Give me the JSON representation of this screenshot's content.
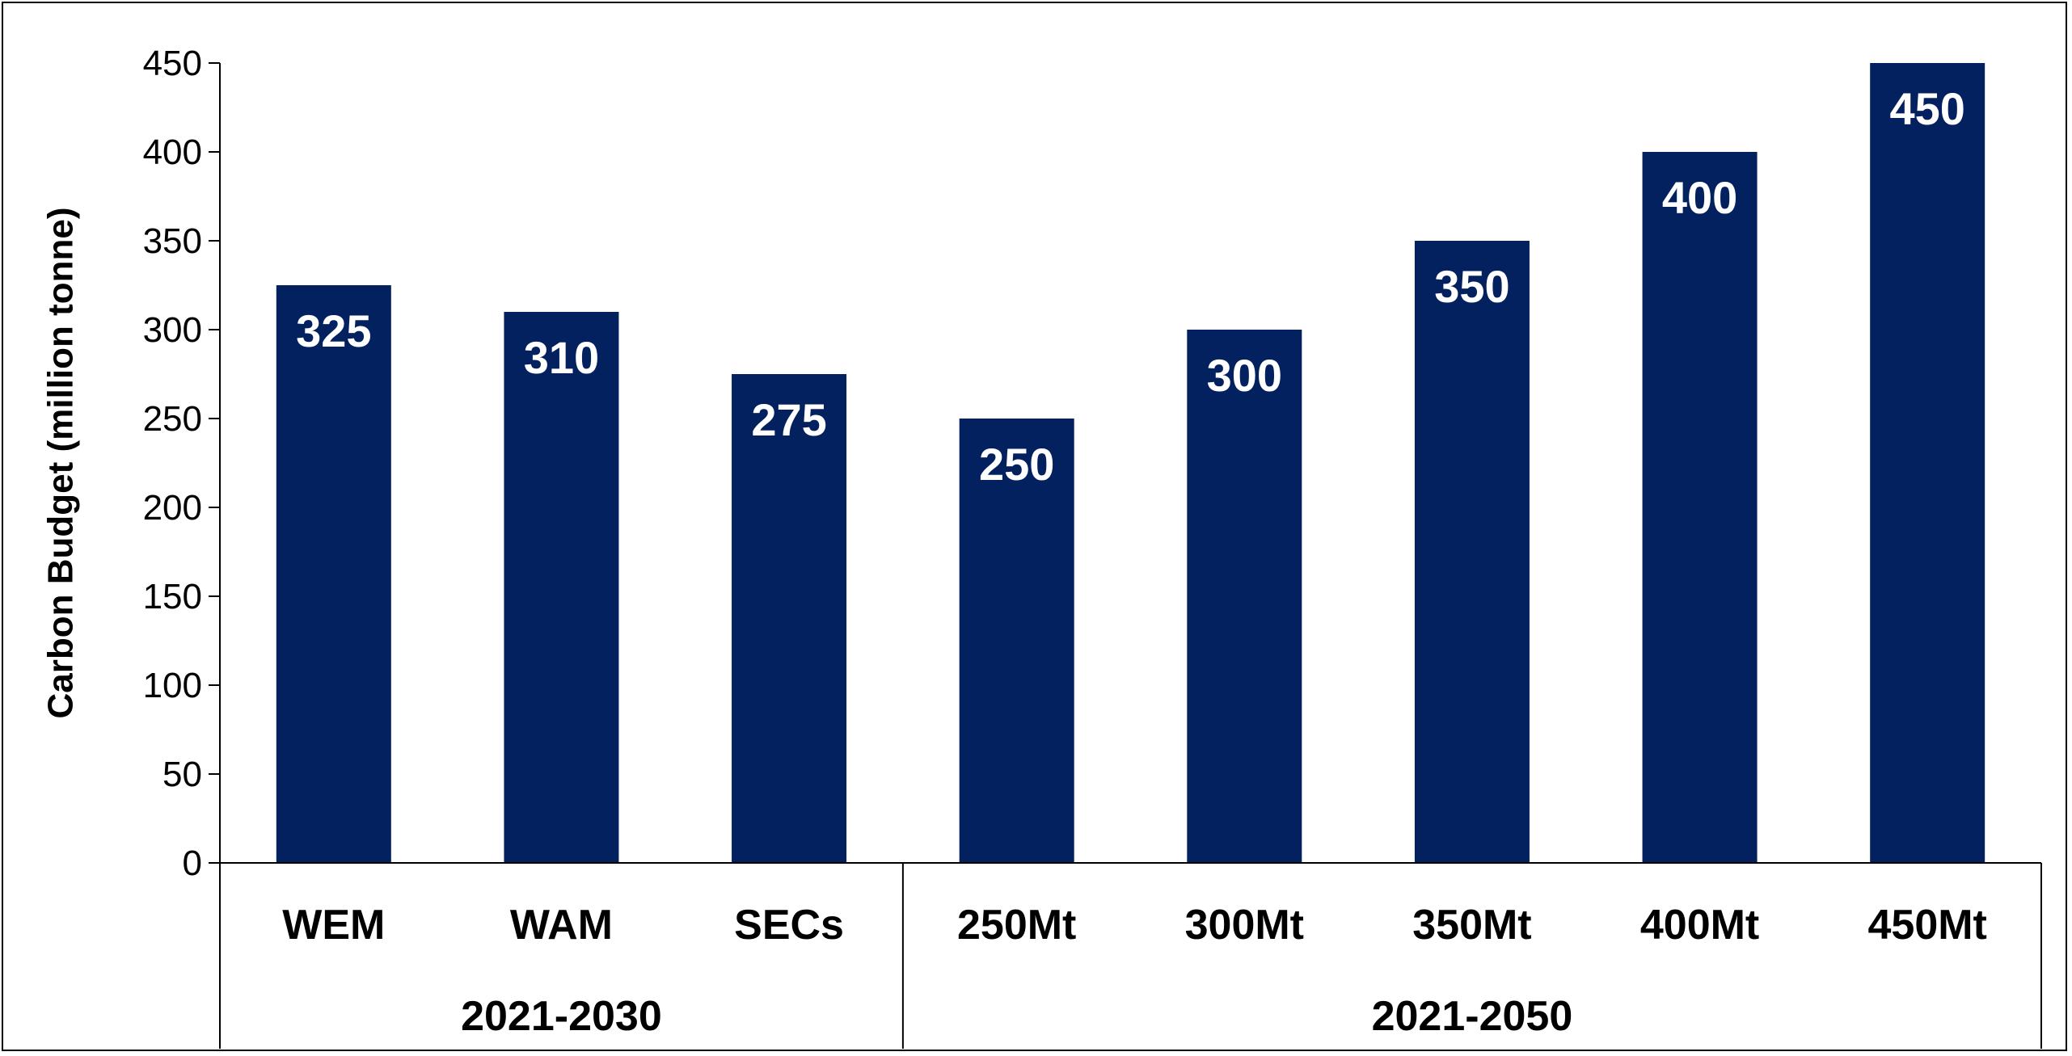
{
  "chart_data": {
    "type": "bar",
    "ylabel": "Carbon Budget (million tonne)",
    "ylim": [
      0,
      450
    ],
    "yticks": [
      0,
      50,
      100,
      150,
      200,
      250,
      300,
      350,
      400,
      450
    ],
    "categories": [
      "WEM",
      "WAM",
      "SECs",
      "250Mt",
      "300Mt",
      "350Mt",
      "400Mt",
      "450Mt"
    ],
    "values": [
      325,
      310,
      275,
      250,
      300,
      350,
      400,
      450
    ],
    "data_labels": [
      "325",
      "310",
      "275",
      "250",
      "300",
      "350",
      "400",
      "450"
    ],
    "groups": [
      {
        "label": "2021-2030",
        "count": 3
      },
      {
        "label": "2021-2050",
        "count": 5
      }
    ],
    "bar_color": "#03215E",
    "legend": "none",
    "grid": false
  }
}
